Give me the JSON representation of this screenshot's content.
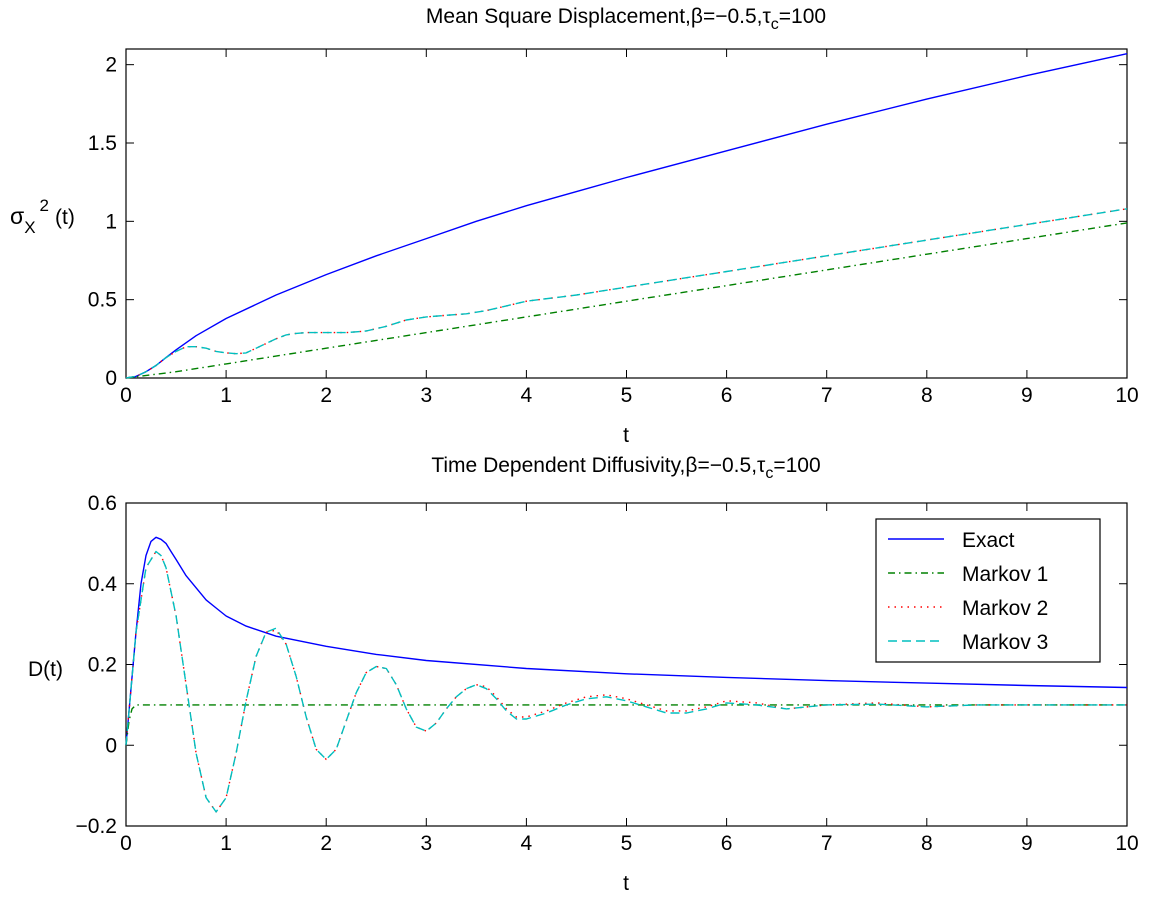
{
  "figure": {
    "background": "#ffffff",
    "axes_color": "#000000"
  },
  "chart_data": [
    {
      "type": "line",
      "title": "Mean Square Displacement,β=−0.5,τ",
      "title_sub": "c",
      "title_tail": "=100",
      "xlabel": "t",
      "ylabel": "σ",
      "ylabel_sub": "X",
      "ylabel_sup": "2",
      "ylabel_tail": "(t)",
      "xlim": [
        0,
        10
      ],
      "ylim": [
        0,
        2.1
      ],
      "xticks": [
        0,
        1,
        2,
        3,
        4,
        5,
        6,
        7,
        8,
        9,
        10
      ],
      "xtick_labels": [
        "0",
        "1",
        "2",
        "3",
        "4",
        "5",
        "6",
        "7",
        "8",
        "9",
        "10"
      ],
      "yticks": [
        0,
        0.5,
        1,
        1.5,
        2
      ],
      "ytick_labels": [
        "0",
        "0.5",
        "1",
        "1.5",
        "2"
      ],
      "grid": false,
      "series": [
        {
          "name": "Exact",
          "color": "#0000ff",
          "dash": "solid",
          "x": [
            0,
            0.1,
            0.2,
            0.3,
            0.4,
            0.5,
            0.7,
            1.0,
            1.5,
            2.0,
            2.5,
            3.0,
            3.5,
            4.0,
            4.5,
            5.0,
            6.0,
            7.0,
            8.0,
            9.0,
            10.0
          ],
          "y": [
            0,
            0.01,
            0.04,
            0.08,
            0.13,
            0.18,
            0.27,
            0.38,
            0.53,
            0.66,
            0.78,
            0.89,
            1.0,
            1.1,
            1.19,
            1.28,
            1.45,
            1.62,
            1.78,
            1.93,
            2.07
          ]
        },
        {
          "name": "Markov 1",
          "color": "#008000",
          "dash": "dashdot",
          "x": [
            0,
            0.5,
            1,
            2,
            3,
            4,
            5,
            6,
            7,
            8,
            9,
            10
          ],
          "y": [
            0,
            0.04,
            0.09,
            0.19,
            0.29,
            0.39,
            0.49,
            0.59,
            0.69,
            0.79,
            0.89,
            0.99
          ]
        },
        {
          "name": "Markov 2",
          "color": "#ff0000",
          "dash": "dotted",
          "x": [
            0,
            0.1,
            0.2,
            0.3,
            0.4,
            0.5,
            0.6,
            0.7,
            0.8,
            0.9,
            1.0,
            1.1,
            1.2,
            1.3,
            1.4,
            1.5,
            1.6,
            1.7,
            1.8,
            2.0,
            2.2,
            2.4,
            2.6,
            2.8,
            3.0,
            3.2,
            3.4,
            3.6,
            3.8,
            4.0,
            4.5,
            5.0,
            5.5,
            6.0,
            7.0,
            8.0,
            9.0,
            10.0
          ],
          "y": [
            0,
            0.01,
            0.04,
            0.08,
            0.13,
            0.17,
            0.2,
            0.2,
            0.19,
            0.17,
            0.16,
            0.155,
            0.16,
            0.19,
            0.22,
            0.25,
            0.275,
            0.285,
            0.29,
            0.29,
            0.29,
            0.3,
            0.33,
            0.37,
            0.39,
            0.4,
            0.41,
            0.43,
            0.46,
            0.49,
            0.53,
            0.58,
            0.63,
            0.68,
            0.78,
            0.88,
            0.98,
            1.08
          ]
        },
        {
          "name": "Markov 3",
          "color": "#00bfbf",
          "dash": "dashed",
          "x": [
            0,
            0.1,
            0.2,
            0.3,
            0.4,
            0.5,
            0.6,
            0.7,
            0.8,
            0.9,
            1.0,
            1.1,
            1.2,
            1.3,
            1.4,
            1.5,
            1.6,
            1.7,
            1.8,
            2.0,
            2.2,
            2.4,
            2.6,
            2.8,
            3.0,
            3.2,
            3.4,
            3.6,
            3.8,
            4.0,
            4.5,
            5.0,
            5.5,
            6.0,
            7.0,
            8.0,
            9.0,
            10.0
          ],
          "y": [
            0,
            0.01,
            0.04,
            0.08,
            0.13,
            0.17,
            0.2,
            0.2,
            0.19,
            0.17,
            0.16,
            0.155,
            0.16,
            0.19,
            0.22,
            0.25,
            0.275,
            0.285,
            0.29,
            0.29,
            0.29,
            0.3,
            0.33,
            0.37,
            0.39,
            0.4,
            0.41,
            0.43,
            0.46,
            0.49,
            0.53,
            0.58,
            0.63,
            0.68,
            0.78,
            0.88,
            0.98,
            1.08
          ]
        }
      ]
    },
    {
      "type": "line",
      "title": "Time Dependent Diffusivity,β=−0.5,τ",
      "title_sub": "c",
      "title_tail": "=100",
      "xlabel": "t",
      "ylabel": "D(t)",
      "xlim": [
        0,
        10
      ],
      "ylim": [
        -0.2,
        0.6
      ],
      "xticks": [
        0,
        1,
        2,
        3,
        4,
        5,
        6,
        7,
        8,
        9,
        10
      ],
      "xtick_labels": [
        "0",
        "1",
        "2",
        "3",
        "4",
        "5",
        "6",
        "7",
        "8",
        "9",
        "10"
      ],
      "yticks": [
        -0.2,
        0,
        0.2,
        0.4,
        0.6
      ],
      "ytick_labels": [
        "−0.2",
        "0",
        "0.2",
        "0.4",
        "0.6"
      ],
      "grid": false,
      "legend_position": "top-right",
      "series": [
        {
          "name": "Exact",
          "color": "#0000ff",
          "dash": "solid",
          "x": [
            0,
            0.05,
            0.1,
            0.15,
            0.2,
            0.25,
            0.3,
            0.35,
            0.4,
            0.45,
            0.5,
            0.6,
            0.7,
            0.8,
            0.9,
            1.0,
            1.2,
            1.5,
            2.0,
            2.5,
            3.0,
            4.0,
            5.0,
            6.0,
            7.0,
            8.0,
            9.0,
            10.0
          ],
          "y": [
            0,
            0.14,
            0.28,
            0.4,
            0.47,
            0.505,
            0.515,
            0.51,
            0.5,
            0.48,
            0.46,
            0.42,
            0.39,
            0.36,
            0.34,
            0.32,
            0.295,
            0.27,
            0.245,
            0.225,
            0.21,
            0.19,
            0.177,
            0.168,
            0.16,
            0.154,
            0.148,
            0.143
          ]
        },
        {
          "name": "Markov 1",
          "color": "#008000",
          "dash": "dashdot",
          "x": [
            0,
            0.03,
            0.06,
            0.1,
            0.2,
            10
          ],
          "y": [
            0,
            0.06,
            0.09,
            0.1,
            0.1,
            0.1
          ]
        },
        {
          "name": "Markov 2",
          "color": "#ff0000",
          "dash": "dotted",
          "x": [
            0,
            0.1,
            0.2,
            0.3,
            0.35,
            0.4,
            0.5,
            0.6,
            0.7,
            0.8,
            0.9,
            1.0,
            1.1,
            1.2,
            1.3,
            1.4,
            1.5,
            1.6,
            1.7,
            1.8,
            1.9,
            2.0,
            2.1,
            2.2,
            2.3,
            2.4,
            2.5,
            2.6,
            2.7,
            2.8,
            2.9,
            3.0,
            3.1,
            3.2,
            3.3,
            3.4,
            3.5,
            3.6,
            3.7,
            3.8,
            3.9,
            4.0,
            4.2,
            4.4,
            4.6,
            4.8,
            5.0,
            5.2,
            5.4,
            5.6,
            5.8,
            6.0,
            6.3,
            6.6,
            7.0,
            7.5,
            8.0,
            8.5,
            9.0,
            9.5,
            10.0
          ],
          "y": [
            0,
            0.28,
            0.44,
            0.48,
            0.47,
            0.44,
            0.32,
            0.15,
            -0.02,
            -0.13,
            -0.165,
            -0.13,
            -0.02,
            0.11,
            0.22,
            0.28,
            0.285,
            0.25,
            0.17,
            0.07,
            -0.01,
            -0.035,
            -0.01,
            0.06,
            0.13,
            0.18,
            0.195,
            0.19,
            0.15,
            0.09,
            0.045,
            0.035,
            0.055,
            0.09,
            0.12,
            0.14,
            0.15,
            0.145,
            0.12,
            0.09,
            0.07,
            0.07,
            0.085,
            0.105,
            0.12,
            0.125,
            0.115,
            0.1,
            0.085,
            0.085,
            0.095,
            0.11,
            0.105,
            0.09,
            0.1,
            0.105,
            0.095,
            0.1,
            0.1,
            0.1,
            0.1
          ]
        },
        {
          "name": "Markov 3",
          "color": "#00bfbf",
          "dash": "dashed",
          "x": [
            0,
            0.1,
            0.2,
            0.3,
            0.35,
            0.4,
            0.5,
            0.6,
            0.7,
            0.8,
            0.9,
            1.0,
            1.1,
            1.2,
            1.3,
            1.4,
            1.5,
            1.6,
            1.7,
            1.8,
            1.9,
            2.0,
            2.1,
            2.2,
            2.3,
            2.4,
            2.5,
            2.6,
            2.7,
            2.8,
            2.9,
            3.0,
            3.1,
            3.2,
            3.3,
            3.4,
            3.5,
            3.6,
            3.7,
            3.8,
            3.9,
            4.0,
            4.2,
            4.4,
            4.6,
            4.8,
            5.0,
            5.2,
            5.4,
            5.6,
            5.8,
            6.0,
            6.3,
            6.6,
            7.0,
            7.5,
            8.0,
            8.5,
            9.0,
            9.5,
            10.0
          ],
          "y": [
            0,
            0.28,
            0.44,
            0.48,
            0.47,
            0.44,
            0.32,
            0.15,
            -0.02,
            -0.13,
            -0.165,
            -0.13,
            -0.02,
            0.11,
            0.22,
            0.28,
            0.29,
            0.25,
            0.17,
            0.07,
            -0.01,
            -0.035,
            -0.01,
            0.06,
            0.13,
            0.18,
            0.195,
            0.19,
            0.15,
            0.09,
            0.045,
            0.035,
            0.055,
            0.09,
            0.12,
            0.14,
            0.15,
            0.14,
            0.115,
            0.085,
            0.065,
            0.065,
            0.08,
            0.1,
            0.115,
            0.12,
            0.11,
            0.095,
            0.08,
            0.08,
            0.09,
            0.105,
            0.1,
            0.09,
            0.1,
            0.102,
            0.095,
            0.1,
            0.1,
            0.1,
            0.1
          ]
        }
      ]
    }
  ]
}
